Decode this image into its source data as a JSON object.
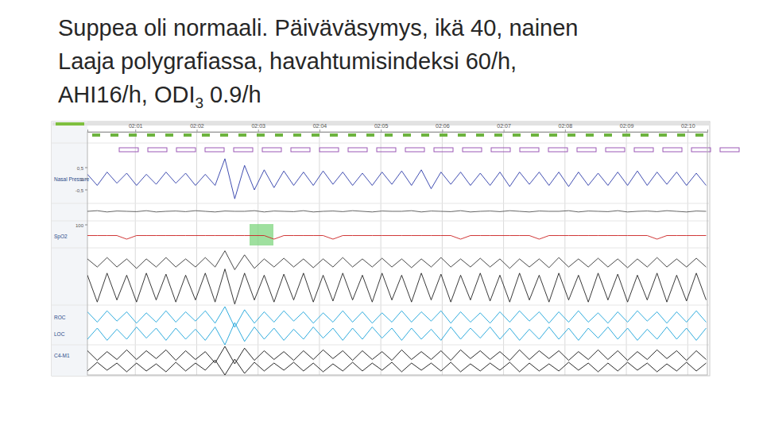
{
  "slide": {
    "lines": [
      "Suppea oli normaali. Päiväväsymys, ikä 40, nainen",
      "Laaja polygrafiassa, havahtumisindeksi 60/h,"
    ],
    "line3": {
      "main": "AHI16/h, ODI",
      "subscript": "3",
      "rest": " 0.9/h"
    }
  },
  "chart_data": {
    "type": "line",
    "x": [
      0.22,
      0.38,
      0.54,
      0.7,
      0.86,
      1.02,
      1.18,
      1.34,
      1.5,
      1.66,
      1.82,
      1.98,
      2.14,
      2.3,
      2.46,
      2.62,
      2.78,
      2.94,
      3.1,
      3.26,
      3.42,
      3.58,
      3.74,
      3.9,
      4.06,
      4.22,
      4.38,
      4.54,
      4.7,
      4.86,
      5.02,
      5.18,
      5.34,
      5.5,
      5.66,
      5.82,
      5.98,
      6.14,
      6.3,
      6.46,
      6.62,
      6.78,
      6.94,
      7.1,
      7.26,
      7.42,
      7.58,
      7.74,
      7.9,
      8.06,
      8.22,
      8.38,
      8.54,
      8.7,
      8.86,
      9.02,
      9.18,
      9.34,
      9.5,
      9.66,
      9.82,
      9.98,
      10.14,
      10.3
    ],
    "xlim": [
      0.22,
      10.32
    ],
    "xticks": [
      {
        "value": 1,
        "label": "02:01"
      },
      {
        "value": 2,
        "label": "02:02"
      },
      {
        "value": 3,
        "label": "02:03"
      },
      {
        "value": 4,
        "label": "02:04"
      },
      {
        "value": 5,
        "label": "02:05"
      },
      {
        "value": 6,
        "label": "02:06"
      },
      {
        "value": 7,
        "label": "02:07"
      },
      {
        "value": 8,
        "label": "02:08"
      },
      {
        "value": 9,
        "label": "02:09"
      },
      {
        "value": 10,
        "label": "02:10"
      }
    ],
    "grid": true,
    "series": [
      {
        "name": "Nasal Pressure",
        "color": "#2b3aa8",
        "ylim": [
          -1,
          1
        ],
        "yticks": [
          {
            "value": 0.5,
            "label": "0,5"
          },
          0,
          {
            "value": -0.5,
            "label": "-0,5"
          }
        ],
        "values": [
          0.2,
          -0.3,
          0.3,
          -0.2,
          0.25,
          -0.3,
          0.2,
          -0.25,
          0.3,
          -0.2,
          0.25,
          -0.3,
          0.2,
          -0.3,
          0.9,
          -0.9,
          0.6,
          -0.5,
          0.4,
          -0.4,
          0.35,
          -0.3,
          0.3,
          -0.3,
          0.35,
          -0.25,
          0.3,
          -0.3,
          0.25,
          -0.3,
          0.3,
          -0.25,
          0.35,
          -0.3,
          0.4,
          -0.45,
          0.3,
          -0.25,
          0.3,
          -0.3,
          0.25,
          -0.3,
          0.3,
          -0.35,
          0.3,
          -0.25,
          0.3,
          -0.3,
          0.3,
          -0.35,
          0.3,
          -0.3,
          0.25,
          -0.3,
          0.3,
          -0.3,
          0.35,
          -0.3,
          0.3,
          -0.25,
          0.3,
          -0.3,
          0.25,
          -0.3
        ]
      },
      {
        "color": "#555555",
        "ylim": [
          -1,
          1
        ],
        "values": [
          0,
          0.1,
          -0.1,
          0.05,
          0,
          -0.05,
          0.1,
          -0.1,
          0,
          0.05,
          -0.05,
          0.1,
          0,
          -0.1,
          0.05,
          0,
          0,
          0.1,
          -0.1,
          0.05,
          0,
          -0.05,
          0.1,
          -0.1,
          0,
          0.05,
          -0.05,
          0.1,
          0,
          -0.1,
          0.05,
          0,
          0,
          0.1,
          -0.1,
          0.05,
          0,
          -0.05,
          0.1,
          -0.1,
          0,
          0.05,
          -0.05,
          0.1,
          0,
          -0.1,
          0.05,
          0,
          0,
          0.1,
          -0.1,
          0.05,
          0,
          -0.05,
          0.1,
          -0.1,
          0,
          0.05,
          -0.05,
          0.1,
          0,
          -0.1,
          0.05,
          0
        ]
      },
      {
        "name": "SpO2",
        "color": "#cc2222",
        "ylim": [
          94,
          100
        ],
        "yticks": [
          100
        ],
        "values": [
          97,
          97,
          97,
          97,
          96,
          97,
          97,
          97,
          97,
          97,
          97,
          97,
          97,
          97,
          97,
          97,
          97,
          97,
          97,
          96,
          97,
          97,
          97,
          97,
          97,
          96,
          97,
          97,
          97,
          97,
          97,
          97,
          97,
          97,
          97,
          97,
          97,
          97,
          96,
          97,
          97,
          97,
          97,
          97,
          97,
          97,
          96,
          97,
          97,
          97,
          97,
          97,
          97,
          97,
          97,
          97,
          97,
          97,
          96,
          97,
          97,
          97,
          97,
          97
        ]
      },
      {
        "color": "#333333",
        "ylim": [
          -1,
          1
        ],
        "values": [
          0.3,
          -0.3,
          0.4,
          -0.3,
          0.3,
          -0.4,
          0.3,
          -0.3,
          0.4,
          -0.3,
          0.3,
          -0.3,
          0.4,
          -0.3,
          0.9,
          -0.5,
          0.6,
          -0.4,
          0.3,
          -0.3,
          0.35,
          -0.3,
          0.3,
          -0.35,
          0.3,
          -0.3,
          0.4,
          -0.3,
          0.3,
          -0.3,
          0.35,
          -0.3,
          0.3,
          -0.35,
          0.3,
          -0.3,
          0.4,
          -0.3,
          0.3,
          -0.3,
          0.35,
          -0.3,
          0.3,
          -0.4,
          0.3,
          -0.3,
          0.3,
          -0.35,
          0.4,
          -0.3,
          0.3,
          -0.3,
          0.35,
          -0.3,
          0.3,
          -0.35,
          0.3,
          -0.3,
          0.4,
          -0.3,
          0.3,
          -0.3,
          0.35,
          -0.3
        ]
      },
      {
        "color": "#222222",
        "ylim": [
          -1,
          1
        ],
        "values": [
          0.6,
          -0.7,
          0.7,
          -0.6,
          0.6,
          -0.7,
          0.7,
          -0.6,
          0.65,
          -0.7,
          0.6,
          -0.6,
          0.7,
          -0.7,
          0.9,
          -0.8,
          0.7,
          -0.6,
          0.6,
          -0.7,
          0.65,
          -0.6,
          0.7,
          -0.7,
          0.6,
          -0.65,
          0.7,
          -0.6,
          0.6,
          -0.7,
          0.7,
          -0.6,
          0.6,
          -0.7,
          0.7,
          -0.6,
          0.65,
          -0.7,
          0.6,
          -0.6,
          0.7,
          -0.65,
          0.6,
          -0.7,
          0.7,
          -0.6,
          0.6,
          -0.7,
          0.7,
          -0.6,
          0.6,
          -0.7,
          0.7,
          -0.6,
          0.65,
          -0.7,
          0.6,
          -0.6,
          0.7,
          -0.7,
          0.6,
          -0.65,
          0.7,
          -0.6
        ]
      },
      {
        "name": "ROC",
        "color": "#1aa3d9",
        "ylim": [
          -1,
          1
        ],
        "values": [
          0.5,
          -0.5,
          0.6,
          -0.4,
          0.5,
          -0.6,
          0.4,
          -0.5,
          0.6,
          -0.5,
          0.5,
          -0.4,
          0.6,
          -0.6,
          1,
          -1,
          0.7,
          -0.6,
          0.5,
          -0.5,
          0.6,
          -0.4,
          0.5,
          -0.6,
          0.4,
          -0.5,
          0.6,
          -0.5,
          0.5,
          -0.6,
          0.4,
          -0.5,
          0.6,
          -0.5,
          0.5,
          -0.4,
          0.6,
          -0.6,
          0.5,
          -0.5,
          0.4,
          -0.6,
          0.5,
          -0.5,
          0.6,
          -0.4,
          0.5,
          -0.6,
          0.5,
          -0.5,
          0.6,
          -0.5,
          0.4,
          -0.6,
          0.5,
          -0.5,
          0.6,
          -0.4,
          0.5,
          -0.6,
          0.5,
          -0.5,
          0.6,
          -0.5
        ]
      },
      {
        "name": "LOC",
        "color": "#1aa3d9",
        "ylim": [
          -1,
          1
        ],
        "values": [
          -0.5,
          0.5,
          -0.6,
          0.4,
          -0.5,
          0.6,
          -0.4,
          0.5,
          -0.6,
          0.5,
          -0.5,
          0.4,
          -0.6,
          0.6,
          -1,
          1,
          -0.7,
          0.6,
          -0.5,
          0.5,
          -0.6,
          0.4,
          -0.5,
          0.6,
          -0.4,
          0.5,
          -0.6,
          0.5,
          -0.5,
          0.6,
          -0.4,
          0.5,
          -0.6,
          0.5,
          -0.5,
          0.4,
          -0.6,
          0.6,
          -0.5,
          0.5,
          -0.4,
          0.6,
          -0.5,
          0.5,
          -0.6,
          0.4,
          -0.5,
          0.6,
          -0.5,
          0.5,
          -0.6,
          0.5,
          -0.4,
          0.6,
          -0.5,
          0.5,
          -0.6,
          0.4,
          -0.5,
          0.6,
          -0.5,
          0.5,
          -0.6,
          0.5
        ]
      },
      {
        "name": "C4-M1",
        "color": "#111111",
        "ylim": [
          -1,
          1
        ],
        "values": [
          0.5,
          -0.6,
          0.4,
          -0.5,
          0.6,
          -0.5,
          0.5,
          -0.4,
          0.6,
          -0.6,
          0.5,
          -0.5,
          0.4,
          -0.9,
          1,
          -1,
          0.8,
          -0.6,
          0.5,
          -0.5,
          0.4,
          -0.6,
          0.5,
          -0.5,
          0.6,
          -0.4,
          0.5,
          -0.6,
          0.5,
          -0.5,
          0.4,
          -0.6,
          0.6,
          -0.5,
          0.4,
          -0.5,
          0.5,
          -0.6,
          0.6,
          -0.4,
          0.5,
          -0.5,
          0.4,
          -0.6,
          0.6,
          -0.5,
          0.5,
          -0.4,
          0.5,
          -0.6,
          0.4,
          -0.5,
          0.6,
          -0.5,
          0.5,
          -0.6,
          0.4,
          -0.5,
          0.6,
          -0.4,
          0.5,
          -0.6,
          0.5,
          -0.5
        ]
      },
      {
        "color": "#111111",
        "ylim": [
          -1,
          1
        ],
        "values": [
          -0.5,
          0.6,
          -0.4,
          0.5,
          -0.6,
          0.5,
          -0.5,
          0.4,
          -0.6,
          0.6,
          -0.5,
          0.5,
          -0.4,
          0.9,
          -1,
          1,
          -0.8,
          0.6,
          -0.5,
          0.5,
          -0.4,
          0.6,
          -0.5,
          0.5,
          -0.6,
          0.4,
          -0.5,
          0.6,
          -0.5,
          0.5,
          -0.4,
          0.6,
          -0.6,
          0.5,
          -0.4,
          0.5,
          -0.5,
          0.6,
          -0.6,
          0.4,
          -0.5,
          0.5,
          -0.4,
          0.6,
          -0.6,
          0.5,
          -0.5,
          0.4,
          -0.5,
          0.6,
          -0.4,
          0.5,
          -0.6,
          0.5,
          -0.5,
          0.6,
          -0.4,
          0.5,
          -0.6,
          0.4,
          -0.5,
          0.6,
          -0.5,
          0.5
        ]
      }
    ]
  }
}
